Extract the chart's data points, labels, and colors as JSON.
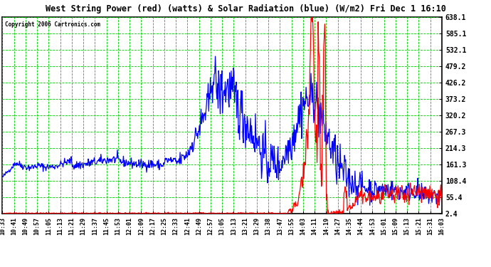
{
  "title": "West String Power (red) (watts) & Solar Radiation (blue) (W/m2) Fri Dec 1 16:10",
  "copyright": "Copyright 2006 Cartronics.com",
  "yticks": [
    2.4,
    55.4,
    108.4,
    161.3,
    214.3,
    267.3,
    320.2,
    373.2,
    426.2,
    479.2,
    532.1,
    585.1,
    638.1
  ],
  "ymin": 2.4,
  "ymax": 638.1,
  "xtick_labels": [
    "10:33",
    "10:41",
    "10:49",
    "10:57",
    "11:05",
    "11:13",
    "11:21",
    "11:29",
    "11:37",
    "11:45",
    "11:53",
    "12:01",
    "12:09",
    "12:17",
    "12:25",
    "12:33",
    "12:41",
    "12:49",
    "12:57",
    "13:05",
    "13:13",
    "13:21",
    "13:29",
    "13:38",
    "13:47",
    "13:55",
    "14:03",
    "14:11",
    "14:19",
    "14:27",
    "14:35",
    "14:44",
    "14:53",
    "15:01",
    "15:09",
    "15:13",
    "15:21",
    "15:31",
    "16:03"
  ],
  "plot_bg": "#ffffff",
  "fig_bg": "#ffffff",
  "grid_color": "#00cc00",
  "blue_color": "#0000ff",
  "red_color": "#ff0000",
  "title_color": "#000000"
}
